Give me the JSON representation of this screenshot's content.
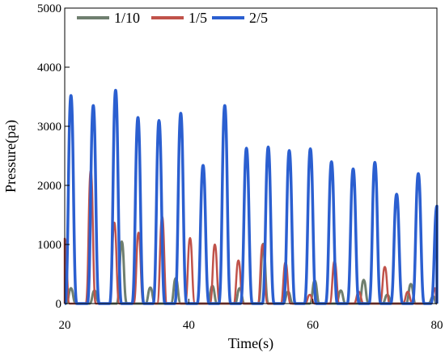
{
  "chart_data": {
    "type": "line",
    "title": "",
    "xlabel": "Time(s)",
    "ylabel": "Pressure(pa)",
    "xlim": [
      20,
      80
    ],
    "ylim": [
      0,
      5000
    ],
    "xticks": [
      20,
      40,
      60,
      80
    ],
    "yticks": [
      0,
      1000,
      2000,
      3000,
      4000,
      5000
    ],
    "grid": false,
    "legend_position": "top-left",
    "series": [
      {
        "name": "1/10",
        "color": "#6f7f6f",
        "peaks": [
          {
            "t": 21.0,
            "p": 260
          },
          {
            "t": 24.8,
            "p": 220
          },
          {
            "t": 29.2,
            "p": 1050
          },
          {
            "t": 33.8,
            "p": 270
          },
          {
            "t": 37.9,
            "p": 430
          },
          {
            "t": 43.8,
            "p": 300
          },
          {
            "t": 48.2,
            "p": 260
          },
          {
            "t": 52.0,
            "p": 1010
          },
          {
            "t": 56.0,
            "p": 200
          },
          {
            "t": 60.3,
            "p": 390
          },
          {
            "t": 64.5,
            "p": 220
          },
          {
            "t": 68.2,
            "p": 400
          },
          {
            "t": 72.0,
            "p": 150
          },
          {
            "t": 75.8,
            "p": 330
          },
          {
            "t": 79.4,
            "p": 120
          }
        ]
      },
      {
        "name": "1/5",
        "color": "#c0524a",
        "peaks": [
          {
            "t": 20.0,
            "p": 1100
          },
          {
            "t": 24.2,
            "p": 2250
          },
          {
            "t": 28.0,
            "p": 1370
          },
          {
            "t": 31.9,
            "p": 1200
          },
          {
            "t": 35.7,
            "p": 1470
          },
          {
            "t": 40.2,
            "p": 1110
          },
          {
            "t": 44.2,
            "p": 1000
          },
          {
            "t": 48.0,
            "p": 730
          },
          {
            "t": 51.9,
            "p": 1000
          },
          {
            "t": 55.6,
            "p": 700
          },
          {
            "t": 59.5,
            "p": 150
          },
          {
            "t": 63.5,
            "p": 720
          },
          {
            "t": 67.4,
            "p": 200
          },
          {
            "t": 71.6,
            "p": 620
          },
          {
            "t": 75.3,
            "p": 200
          },
          {
            "t": 79.7,
            "p": 260
          }
        ]
      },
      {
        "name": "2/5",
        "color": "#2b5fd0",
        "peaks": [
          {
            "t": 21.0,
            "p": 3520
          },
          {
            "t": 24.6,
            "p": 3350
          },
          {
            "t": 28.2,
            "p": 3610
          },
          {
            "t": 31.8,
            "p": 3150
          },
          {
            "t": 35.2,
            "p": 3100
          },
          {
            "t": 38.7,
            "p": 3220
          },
          {
            "t": 42.3,
            "p": 2340
          },
          {
            "t": 45.8,
            "p": 3350
          },
          {
            "t": 49.3,
            "p": 2630
          },
          {
            "t": 52.8,
            "p": 2650
          },
          {
            "t": 56.2,
            "p": 2590
          },
          {
            "t": 59.6,
            "p": 2620
          },
          {
            "t": 63.0,
            "p": 2400
          },
          {
            "t": 66.5,
            "p": 2280
          },
          {
            "t": 70.0,
            "p": 2390
          },
          {
            "t": 73.5,
            "p": 1850
          },
          {
            "t": 77.0,
            "p": 2200
          },
          {
            "t": 80.0,
            "p": 1650
          }
        ]
      }
    ]
  }
}
